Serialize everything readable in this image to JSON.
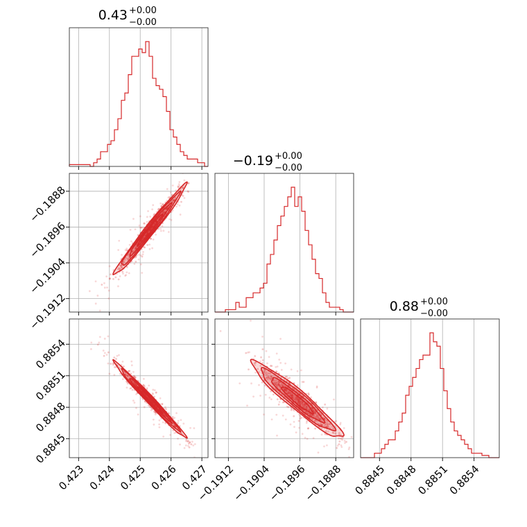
{
  "chart_data": {
    "type": "corner",
    "color": "#d62728",
    "grid": true,
    "parameters": [
      {
        "title": "0.43",
        "title_sup": "+0.00",
        "title_sub": "−0.00",
        "range": [
          0.4227,
          0.4272
        ],
        "ticks": [
          0.423,
          0.424,
          0.425,
          0.426,
          0.427
        ],
        "tick_labels": [
          "0.423",
          "0.424",
          "0.425",
          "0.426",
          "0.427"
        ],
        "mean": 0.42532,
        "sd": 0.00045
      },
      {
        "title": "−0.19",
        "title_sup": "+0.00",
        "title_sub": "−0.00",
        "range": [
          -0.1915,
          -0.1884
        ],
        "ticks": [
          -0.1912,
          -0.1904,
          -0.1896,
          -0.1888
        ],
        "tick_labels": [
          "−0.1912",
          "−0.1904",
          "−0.1896",
          "−0.1888"
        ],
        "mean": -0.18966,
        "sd": 0.00039
      },
      {
        "title": "0.88",
        "title_sup": "+0.00",
        "title_sub": "−0.00",
        "range": [
          0.88432,
          0.88564
        ],
        "ticks": [
          0.8845,
          0.8848,
          0.8851,
          0.8854
        ],
        "tick_labels": [
          "0.8845",
          "0.8848",
          "0.8851",
          "0.8854"
        ],
        "mean": 0.88487,
        "sd": 0.00014
      }
    ],
    "histograms": [
      {
        "param": 0,
        "counts": [
          0.5,
          0.5,
          0.5,
          0.5,
          0.5,
          0.5,
          0,
          1,
          2,
          4,
          4,
          6,
          7,
          10,
          13,
          18,
          20,
          25,
          30,
          30,
          32,
          31,
          34,
          30,
          24,
          22,
          21,
          19,
          15,
          10,
          8,
          6,
          4,
          3,
          2,
          2,
          2,
          1,
          1,
          0
        ]
      },
      {
        "param": 1,
        "counts": [
          0,
          0,
          0,
          0.5,
          0.5,
          0.5,
          2,
          1,
          1,
          3,
          3,
          4,
          4,
          5,
          6,
          10,
          12,
          15,
          18,
          20,
          22,
          24,
          26,
          22,
          24,
          21,
          17,
          14,
          11,
          8,
          7,
          4,
          2,
          1,
          1,
          1,
          0.5,
          0,
          0,
          0
        ]
      },
      {
        "param": 2,
        "counts": [
          0,
          0,
          0,
          0,
          1,
          1,
          2,
          3,
          4,
          4,
          6,
          8,
          10,
          14,
          16,
          18,
          20,
          22,
          23,
          23,
          28,
          26,
          25,
          20,
          15,
          11,
          8,
          6,
          5,
          4,
          3,
          2,
          1,
          1,
          1,
          0.5,
          0.5,
          0,
          0,
          0
        ]
      }
    ],
    "pairs": [
      {
        "x_param": 0,
        "y_param": 1,
        "correlation": 0.985
      },
      {
        "x_param": 0,
        "y_param": 2,
        "correlation": -0.99
      },
      {
        "x_param": 1,
        "y_param": 2,
        "correlation": -0.95
      }
    ]
  }
}
